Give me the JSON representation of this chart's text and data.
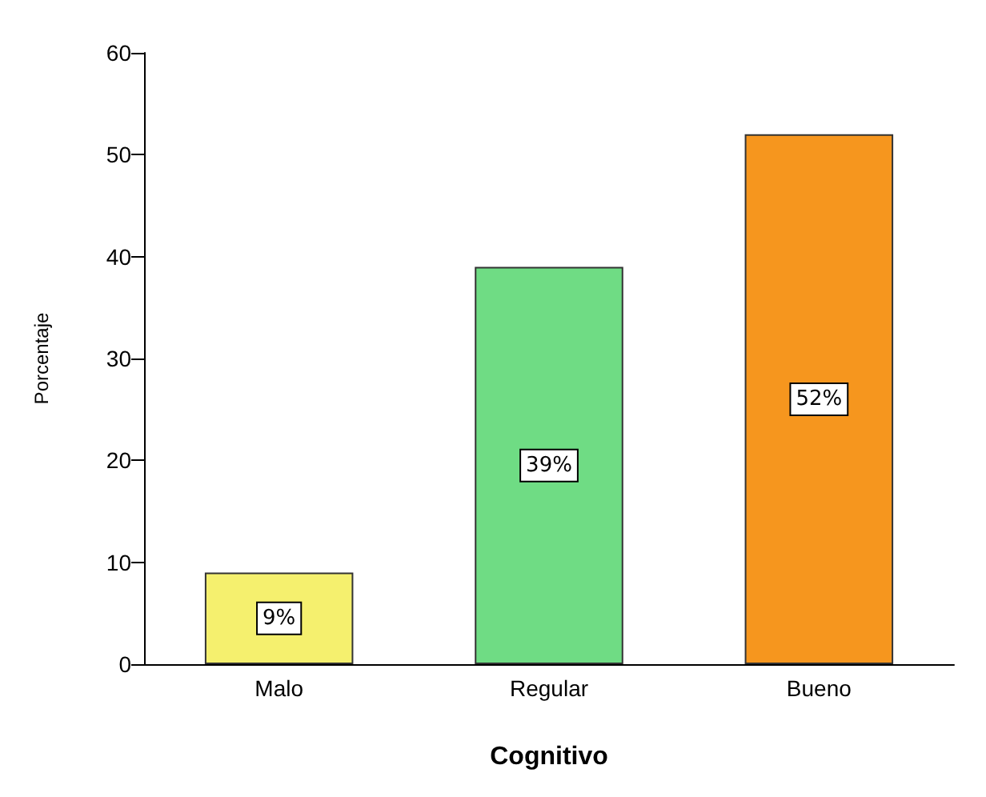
{
  "chart_data": {
    "type": "bar",
    "xlabel": "Cognitivo",
    "ylabel": "Porcentaje",
    "categories": [
      "Malo",
      "Regular",
      "Bueno"
    ],
    "values": [
      9,
      39,
      52
    ],
    "colors": [
      "#f5f06e",
      "#6fdc84",
      "#f6961e"
    ],
    "value_labels": [
      "9%",
      "39%",
      "52%"
    ],
    "ylim": [
      0,
      60
    ],
    "yticks": [
      0,
      10,
      20,
      30,
      40,
      50,
      60
    ],
    "grid": false
  }
}
